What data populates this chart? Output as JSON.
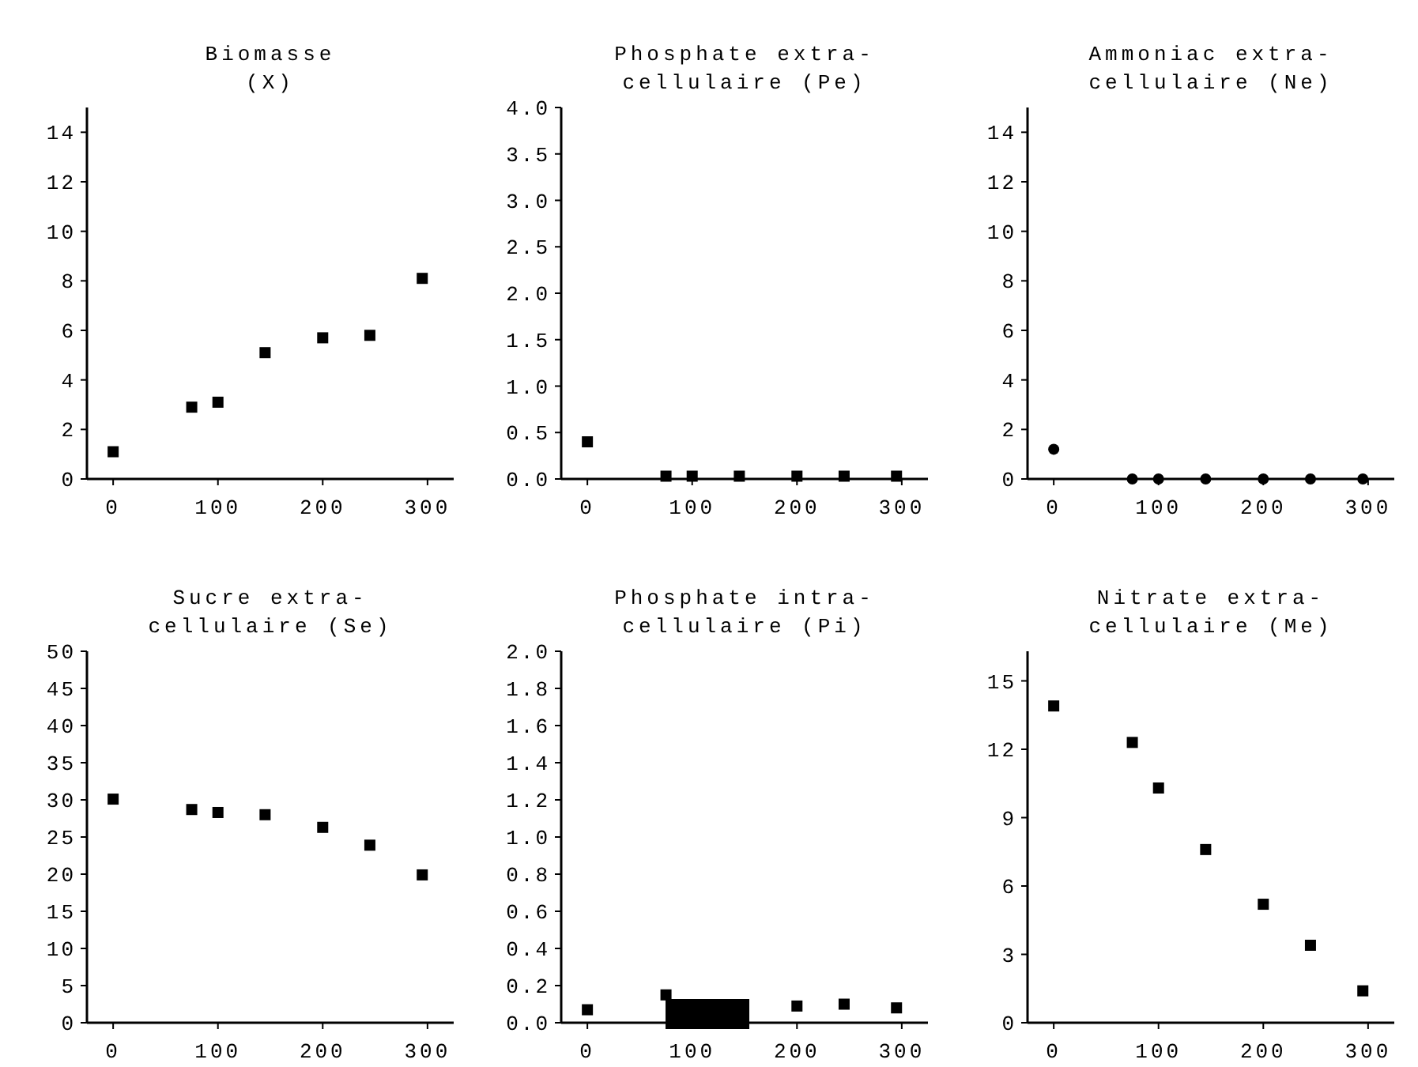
{
  "chart_data": [
    {
      "type": "scatter",
      "title": "Biomasse\n(X)",
      "x": [
        0,
        75,
        100,
        145,
        200,
        245,
        295
      ],
      "values": [
        1.1,
        2.9,
        3.1,
        5.1,
        5.7,
        5.8,
        8.1
      ],
      "color": "#000000",
      "marker": "square",
      "xlim": [
        -25,
        325
      ],
      "xticks": [
        0,
        100,
        200,
        300
      ],
      "ylim": [
        0,
        15
      ],
      "yticks": [
        0,
        2,
        4,
        6,
        8,
        10,
        12,
        14
      ]
    },
    {
      "type": "scatter",
      "title": "Phosphate extra-\ncellulaire (Pe)",
      "x": [
        0,
        75,
        100,
        145,
        200,
        245,
        295
      ],
      "values": [
        0.4,
        0.03,
        0.03,
        0.03,
        0.03,
        0.03,
        0.03
      ],
      "color": "#000000",
      "marker": "square",
      "xlim": [
        -25,
        325
      ],
      "xticks": [
        0,
        100,
        200,
        300
      ],
      "ylim": [
        0,
        4
      ],
      "yticks": [
        {
          "value": 0,
          "label": "0.0"
        },
        0.5,
        {
          "value": 1,
          "label": "1.0"
        },
        1.5,
        {
          "value": 2,
          "label": "2.0"
        },
        2.5,
        {
          "value": 3,
          "label": "3.0"
        },
        3.5,
        {
          "value": 4,
          "label": "4.0"
        }
      ]
    },
    {
      "type": "scatter",
      "title": "Ammoniac extra-\ncellulaire (Ne)",
      "x": [
        0,
        75,
        100,
        145,
        200,
        245,
        295
      ],
      "values": [
        1.2,
        0,
        0,
        0,
        0,
        0,
        0
      ],
      "color": "#000000",
      "marker": "circle",
      "xlim": [
        -25,
        325
      ],
      "xticks": [
        0,
        100,
        200,
        300
      ],
      "ylim": [
        0,
        15
      ],
      "yticks": [
        0,
        2,
        4,
        6,
        8,
        10,
        12,
        14
      ]
    },
    {
      "type": "scatter",
      "title": "Sucre extra-\ncellulaire (Se)",
      "x": [
        0,
        75,
        100,
        145,
        200,
        245,
        295
      ],
      "values": [
        30.1,
        28.7,
        28.3,
        28,
        26.3,
        23.9,
        19.9
      ],
      "color": "#000000",
      "marker": "square",
      "xlim": [
        -25,
        325
      ],
      "xticks": [
        0,
        100,
        200,
        300
      ],
      "ylim": [
        0,
        50
      ],
      "yticks": [
        0,
        5,
        10,
        15,
        20,
        25,
        30,
        35,
        40,
        45,
        50
      ]
    },
    {
      "type": "scatter",
      "title": "Phosphate intra-\ncellulaire (Pi)",
      "x": [
        0,
        75,
        100,
        145,
        200,
        245,
        295
      ],
      "values": [
        0.07,
        0.15,
        null,
        null,
        0.09,
        0.1,
        0.08
      ],
      "color": "#000000",
      "marker": "square",
      "xlim": [
        -25,
        325
      ],
      "xticks": [
        0,
        100,
        200,
        300
      ],
      "ylim": [
        0,
        2
      ],
      "yticks": [
        {
          "value": 0,
          "label": "0.0"
        },
        0.2,
        0.4,
        0.6,
        0.8,
        {
          "value": 1,
          "label": "1.0"
        },
        1.2,
        1.4,
        1.6,
        1.8,
        {
          "value": 2,
          "label": "2.0"
        }
      ]
    },
    {
      "type": "scatter",
      "title": "Nitrate extra-\ncellulaire (Me)",
      "x": [
        0,
        75,
        100,
        145,
        200,
        245,
        295
      ],
      "values": [
        13.9,
        12.3,
        10.3,
        7.6,
        5.2,
        3.4,
        1.4
      ],
      "color": "#000000",
      "marker": "square",
      "xlim": [
        -25,
        325
      ],
      "xticks": [
        0,
        100,
        200,
        300
      ],
      "ylim": [
        0,
        16.3
      ],
      "yticks": [
        0,
        3,
        6,
        9,
        12,
        15
      ]
    }
  ]
}
